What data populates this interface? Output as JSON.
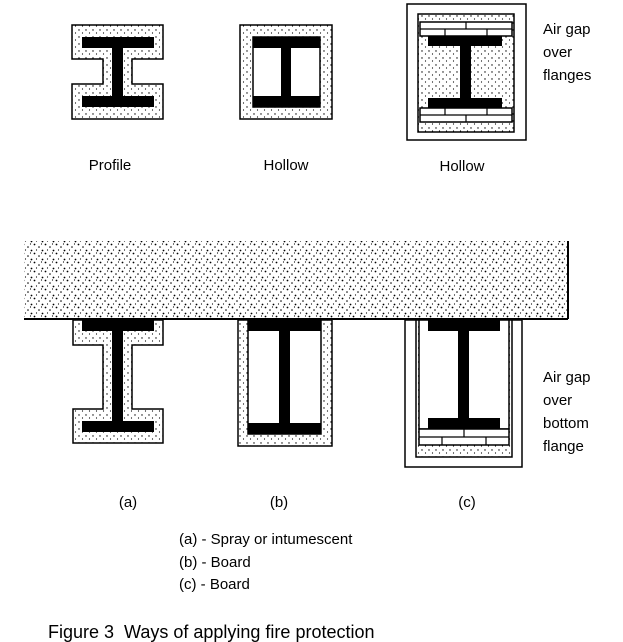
{
  "labels": {
    "top_left": "Profile",
    "top_middle": "Hollow",
    "top_right": "Hollow",
    "air_gap_flanges": [
      "Air gap",
      "over",
      "flanges"
    ],
    "air_gap_bottom": [
      "Air gap",
      "over",
      "bottom",
      "flange"
    ],
    "bottom_a": "(a)",
    "bottom_b": "(b)",
    "bottom_c": "(c)"
  },
  "legend": {
    "a": "(a) - Spray or intumescent",
    "b": "(b) - Board",
    "c": "(c) - Board"
  },
  "caption": "Figure 3  Ways of applying fire protection"
}
